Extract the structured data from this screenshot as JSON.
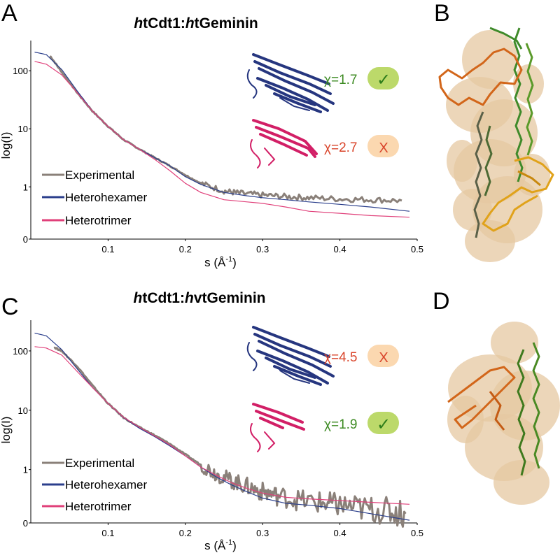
{
  "panels": {
    "A": "A",
    "B": "B",
    "C": "C",
    "D": "D"
  },
  "colors": {
    "experimental": "#8a8079",
    "heterohexamer": "#2b3f8c",
    "heterotrimer": "#e0407a",
    "good_text": "#3c8a22",
    "bad_text": "#d9452b",
    "good_badge": "#bcd96a",
    "bad_badge": "#fbd8b0",
    "surface": "#e6c8a2"
  },
  "chart_data": [
    {
      "type": "line",
      "panel": "A",
      "title_italic_1": "h",
      "title_rest_1": "tCdt1:",
      "title_italic_2": "h",
      "title_rest_2": "tGeminin",
      "xlabel": "s (Å",
      "xlabel_sup": "-1",
      "xlabel_end": ")",
      "ylabel": "log(I)",
      "xlim": [
        0,
        0.5
      ],
      "x_ticks": [
        "0.1",
        "0.2",
        "0.3",
        "0.4",
        "0.5"
      ],
      "y_ticks": [
        "0",
        "1",
        "10",
        "100"
      ],
      "legend": [
        "Experimental",
        "Heterohexamer",
        "Heterotrimer"
      ],
      "fits": [
        {
          "chi": "χ=1.7",
          "mark": "✓",
          "verdict": "good",
          "model": "heterohexamer"
        },
        {
          "chi": "χ=2.7",
          "mark": "X",
          "verdict": "bad",
          "model": "heterotrimer"
        }
      ],
      "series": [
        {
          "name": "Experimental",
          "x": [
            0.025,
            0.04,
            0.06,
            0.08,
            0.1,
            0.12,
            0.14,
            0.16,
            0.18,
            0.2,
            0.22,
            0.25,
            0.27,
            0.3,
            0.33,
            0.36,
            0.4,
            0.44,
            0.48
          ],
          "y": [
            180,
            95,
            42,
            20,
            11,
            6.5,
            4.5,
            3.2,
            2.3,
            1.6,
            1.15,
            0.85,
            0.78,
            0.72,
            0.68,
            0.65,
            0.62,
            0.6,
            0.58
          ]
        },
        {
          "name": "Heterohexamer",
          "x": [
            0.005,
            0.02,
            0.04,
            0.06,
            0.08,
            0.1,
            0.12,
            0.14,
            0.16,
            0.18,
            0.2,
            0.22,
            0.25,
            0.28,
            0.3,
            0.33,
            0.36,
            0.4,
            0.44,
            0.49
          ],
          "y": [
            210,
            190,
            105,
            45,
            20,
            11,
            6.5,
            4.5,
            3.2,
            2.3,
            1.5,
            1.1,
            0.8,
            0.7,
            0.65,
            0.6,
            0.55,
            0.5,
            0.45,
            0.38
          ]
        },
        {
          "name": "Heterotrimer",
          "x": [
            0.005,
            0.02,
            0.04,
            0.06,
            0.08,
            0.1,
            0.12,
            0.14,
            0.16,
            0.18,
            0.2,
            0.22,
            0.25,
            0.28,
            0.3,
            0.33,
            0.36,
            0.4,
            0.44,
            0.49
          ],
          "y": [
            145,
            130,
            85,
            42,
            20,
            11,
            6.5,
            4.5,
            3.0,
            1.9,
            1.15,
            0.8,
            0.6,
            0.55,
            0.52,
            0.45,
            0.38,
            0.35,
            0.32,
            0.3
          ]
        }
      ]
    },
    {
      "type": "line",
      "panel": "C",
      "title_italic_1": "h",
      "title_rest_1": "tCdt1:",
      "title_italic_2": "h",
      "title_rest_2": "vtGeminin",
      "xlabel": "s (Å",
      "xlabel_sup": "-1",
      "xlabel_end": ")",
      "ylabel": "log(I)",
      "xlim": [
        0,
        0.5
      ],
      "x_ticks": [
        "0.1",
        "0.2",
        "0.3",
        "0.4",
        "0.5"
      ],
      "y_ticks": [
        "0",
        "1",
        "10",
        "100"
      ],
      "legend": [
        "Experimental",
        "Heterohexamer",
        "Heterotrimer"
      ],
      "fits": [
        {
          "chi": "χ=4.5",
          "mark": "X",
          "verdict": "bad",
          "model": "heterohexamer"
        },
        {
          "chi": "χ=1.9",
          "mark": "✓",
          "verdict": "good",
          "model": "heterotrimer"
        }
      ],
      "series": [
        {
          "name": "Experimental",
          "x": [
            0.03,
            0.04,
            0.06,
            0.08,
            0.1,
            0.12,
            0.14,
            0.16,
            0.18,
            0.2,
            0.22,
            0.24,
            0.26,
            0.28,
            0.3,
            0.32,
            0.35,
            0.38,
            0.4,
            0.43,
            0.46,
            0.485
          ],
          "y": [
            115,
            100,
            55,
            26,
            13,
            7.5,
            5.2,
            3.8,
            2.7,
            1.8,
            1.2,
            0.85,
            0.65,
            0.52,
            0.42,
            0.36,
            0.3,
            0.27,
            0.25,
            0.22,
            0.2,
            0.18
          ]
        },
        {
          "name": "Heterohexamer",
          "x": [
            0.005,
            0.02,
            0.04,
            0.06,
            0.08,
            0.1,
            0.12,
            0.14,
            0.16,
            0.18,
            0.2,
            0.22,
            0.24,
            0.26,
            0.28,
            0.3,
            0.33,
            0.36,
            0.4,
            0.44,
            0.49
          ],
          "y": [
            200,
            180,
            105,
            50,
            24,
            13,
            7.5,
            5.0,
            3.6,
            2.5,
            1.7,
            1.1,
            0.75,
            0.55,
            0.42,
            0.33,
            0.27,
            0.25,
            0.22,
            0.18,
            0.14
          ]
        },
        {
          "name": "Heterotrimer",
          "x": [
            0.005,
            0.02,
            0.04,
            0.06,
            0.08,
            0.1,
            0.12,
            0.14,
            0.16,
            0.18,
            0.2,
            0.22,
            0.24,
            0.26,
            0.28,
            0.3,
            0.33,
            0.36,
            0.4,
            0.44,
            0.49
          ],
          "y": [
            118,
            112,
            85,
            45,
            24,
            13,
            7.6,
            5.2,
            3.7,
            2.6,
            1.7,
            1.1,
            0.8,
            0.6,
            0.48,
            0.4,
            0.34,
            0.32,
            0.3,
            0.28,
            0.26
          ]
        }
      ]
    }
  ]
}
